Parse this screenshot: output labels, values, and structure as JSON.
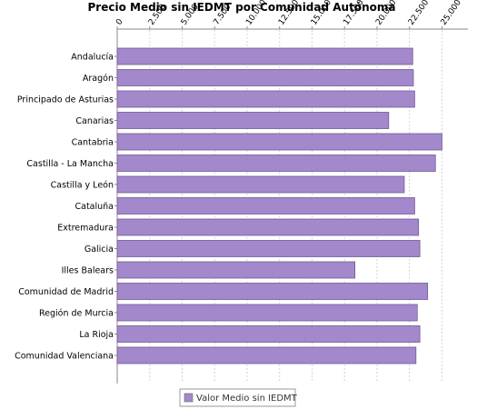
{
  "chart_data": {
    "type": "bar",
    "orientation": "horizontal",
    "title": "Precio Medio sin IEDMT por Comunidad Autónoma",
    "xlabel": "",
    "ylabel": "",
    "xlim": [
      0,
      27000
    ],
    "x_ticks": [
      0,
      2500,
      5000,
      7500,
      10000,
      12500,
      15000,
      17500,
      20000,
      22500,
      25000
    ],
    "x_tick_labels": [
      "0",
      "2.500",
      "5.000",
      "7.500",
      "10.000",
      "12.500",
      "15.000",
      "17.500",
      "20.000",
      "22.500",
      "25.000"
    ],
    "x_axis_position": "top",
    "grid": true,
    "legend_position": "bottom",
    "categories": [
      "Andalucía",
      "Aragón",
      "Principado de Asturias",
      "Canarias",
      "Cantabria",
      "Castilla - La Mancha",
      "Castilla y León",
      "Cataluña",
      "Extremadura",
      "Galicia",
      "Illes Balears",
      "Comunidad de Madrid",
      "Región de Murcia",
      "La Rioja",
      "Comunidad Valenciana"
    ],
    "series": [
      {
        "name": "Valor Medio sin IEDMT",
        "color": "#a388cc",
        "values": [
          22750,
          22800,
          22900,
          20900,
          25000,
          24500,
          22100,
          22900,
          23200,
          23300,
          18300,
          23900,
          23100,
          23300,
          23000
        ]
      }
    ]
  }
}
